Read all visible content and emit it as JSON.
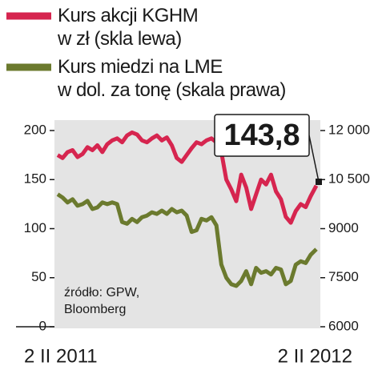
{
  "chart_data": {
    "type": "line",
    "x": [
      "2011-02-02",
      "2011-02-09",
      "2011-02-16",
      "2011-02-23",
      "2011-03-02",
      "2011-03-09",
      "2011-03-16",
      "2011-03-23",
      "2011-03-30",
      "2011-04-06",
      "2011-04-13",
      "2011-04-20",
      "2011-04-27",
      "2011-05-04",
      "2011-05-11",
      "2011-05-18",
      "2011-05-25",
      "2011-06-01",
      "2011-06-08",
      "2011-06-15",
      "2011-06-22",
      "2011-06-29",
      "2011-07-06",
      "2011-07-13",
      "2011-07-20",
      "2011-07-27",
      "2011-08-03",
      "2011-08-10",
      "2011-08-17",
      "2011-08-24",
      "2011-08-31",
      "2011-09-07",
      "2011-09-14",
      "2011-09-21",
      "2011-09-28",
      "2011-10-05",
      "2011-10-12",
      "2011-10-19",
      "2011-10-26",
      "2011-11-02",
      "2011-11-09",
      "2011-11-16",
      "2011-11-23",
      "2011-11-30",
      "2011-12-07",
      "2011-12-14",
      "2011-12-21",
      "2011-12-28",
      "2012-01-04",
      "2012-01-11",
      "2012-01-18",
      "2012-01-25",
      "2012-02-02"
    ],
    "series": [
      {
        "name": "Kurs akcji KGHM\nw zł (skla lewa)",
        "color": "#d6254f",
        "values": [
          175,
          172,
          178,
          180,
          173,
          176,
          183,
          180,
          185,
          178,
          186,
          190,
          192,
          188,
          195,
          198,
          196,
          190,
          188,
          192,
          195,
          190,
          193,
          185,
          172,
          168,
          175,
          182,
          188,
          186,
          190,
          192,
          188,
          178,
          150,
          140,
          128,
          155,
          142,
          120,
          135,
          150,
          145,
          155,
          138,
          130,
          112,
          106,
          118,
          125,
          122,
          133,
          143.8
        ],
        "value_labels": [
          null,
          null,
          null,
          null,
          null,
          null,
          null,
          null,
          null,
          null,
          null,
          null,
          null,
          null,
          null,
          null,
          null,
          null,
          null,
          null,
          null,
          null,
          null,
          null,
          null,
          null,
          null,
          null,
          null,
          null,
          null,
          null,
          null,
          null,
          null,
          null,
          null,
          null,
          null,
          null,
          null,
          null,
          null,
          null,
          null,
          null,
          null,
          null,
          null,
          null,
          null,
          null,
          "143,8"
        ]
      },
      {
        "name": "Kurs miedzi na LME\nw dol. za tonę (skala prawa)",
        "color": "#6b7a2e",
        "axis": "y2",
        "values": [
          10050,
          9950,
          9800,
          9900,
          9700,
          9750,
          9850,
          9600,
          9650,
          9800,
          9750,
          9800,
          9750,
          9200,
          9150,
          9300,
          9200,
          9350,
          9400,
          9500,
          9450,
          9550,
          9450,
          9600,
          9500,
          9550,
          9400,
          8900,
          8950,
          9300,
          9250,
          9350,
          9100,
          7900,
          7500,
          7300,
          7250,
          7400,
          7700,
          7300,
          7800,
          7650,
          7700,
          7600,
          7800,
          7750,
          7300,
          7400,
          7900,
          8000,
          7950,
          8200,
          8372
        ]
      }
    ],
    "xlim": [
      "2011-02-02",
      "2012-02-02"
    ],
    "xticks": [
      {
        "value": "2011-02-02",
        "label": "2 II 2011"
      },
      {
        "value": "2012-02-02",
        "label": "2 II 2012"
      }
    ],
    "ylim": [
      0,
      200
    ],
    "yticks": [
      0,
      50,
      100,
      150,
      200
    ],
    "y2lim": [
      6000,
      12000
    ],
    "y2ticks": [
      {
        "value": 6000,
        "label": "6000"
      },
      {
        "value": 7500,
        "label": "7500"
      },
      {
        "value": 9000,
        "label": "9000"
      },
      {
        "value": 10500,
        "label": "10 500"
      },
      {
        "value": 12000,
        "label": "12 000"
      }
    ],
    "source": [
      "źródło: GPW,",
      "Bloomberg"
    ]
  }
}
